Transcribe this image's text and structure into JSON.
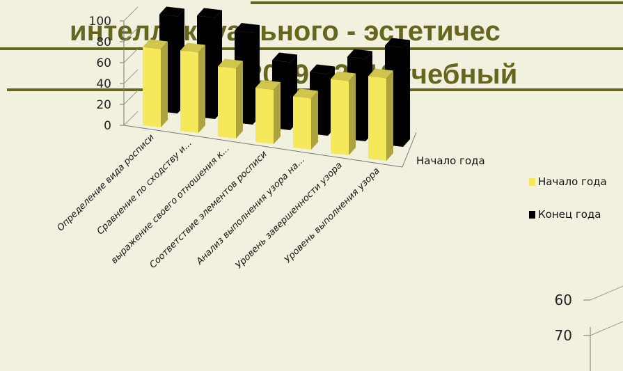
{
  "slide_title": [
    "интеллектуального - эстетичес",
    "2009 - 2010учебный"
  ],
  "chart_data": [
    {
      "type": "bar3d",
      "categories": [
        "Определение вида росписи",
        "Сравнение по сходству и...",
        "выражение своего отношения к...",
        "Соответствие элементов росписи",
        "Анализ выполнения узора на...",
        "Уровень завершенности узора",
        "Уровень выполнения узора"
      ],
      "series": [
        {
          "name": "Начало года",
          "color": "#f5e85a",
          "values": [
            75,
            77,
            67,
            52,
            49,
            71,
            79
          ]
        },
        {
          "name": "Конец года",
          "color": "#000000",
          "values": [
            93,
            97,
            88,
            65,
            59,
            79,
            95
          ]
        }
      ],
      "z_label": "Начало года",
      "ylim": [
        0,
        100
      ],
      "yticks": [
        0,
        20,
        40,
        60,
        80,
        100
      ],
      "legend": "right"
    },
    {
      "type": "bar",
      "ylim": [
        60,
        70
      ],
      "yticks": [
        60,
        70
      ]
    }
  ]
}
